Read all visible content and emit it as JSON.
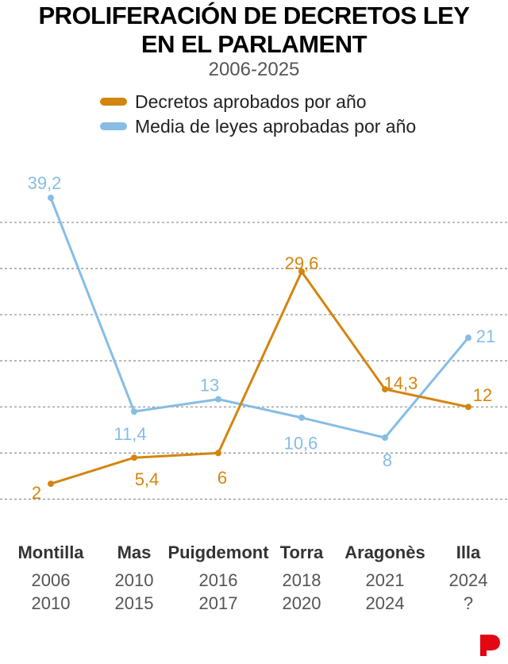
{
  "header": {
    "title_line1": "PROLIFERACIÓN DE DECRETOS LEY",
    "title_line2": "EN EL PARLAMENT",
    "subtitle": "2006-2025"
  },
  "legend": {
    "decretos": "Decretos aprobados por año",
    "leyes": "Media de leyes aprobadas por año"
  },
  "brand": {
    "logo_icon": "publication-logo-icon",
    "color": "#e30613"
  },
  "chart_data": {
    "type": "line",
    "categories": [
      "Montilla",
      "Mas",
      "Puigdemont",
      "Torra",
      "Aragonès",
      "Illa"
    ],
    "periods": [
      [
        "2006",
        "2010"
      ],
      [
        "2010",
        "2015"
      ],
      [
        "2016",
        "2017"
      ],
      [
        "2018",
        "2020"
      ],
      [
        "2021",
        "2024"
      ],
      [
        "2024",
        "?"
      ]
    ],
    "series": [
      {
        "name": "Decretos aprobados por año",
        "color": "#d4850f",
        "values": [
          2,
          5.4,
          6,
          29.6,
          14.3,
          12
        ],
        "labels": [
          "2",
          "5,4",
          "6",
          "29,6",
          "14,3",
          "12"
        ]
      },
      {
        "name": "Media de leyes aprobadas por año",
        "color": "#85bde6",
        "values": [
          39.2,
          11.4,
          13,
          10.6,
          8,
          21
        ],
        "labels": [
          "39,2",
          "11,4",
          "13",
          "10,6",
          "8",
          "21"
        ]
      }
    ],
    "ylim": [
      -4.5,
      42
    ],
    "gridlines": [
      0,
      6,
      12,
      18,
      24,
      30,
      36
    ],
    "grid": true,
    "gridline_style": "dashed"
  }
}
